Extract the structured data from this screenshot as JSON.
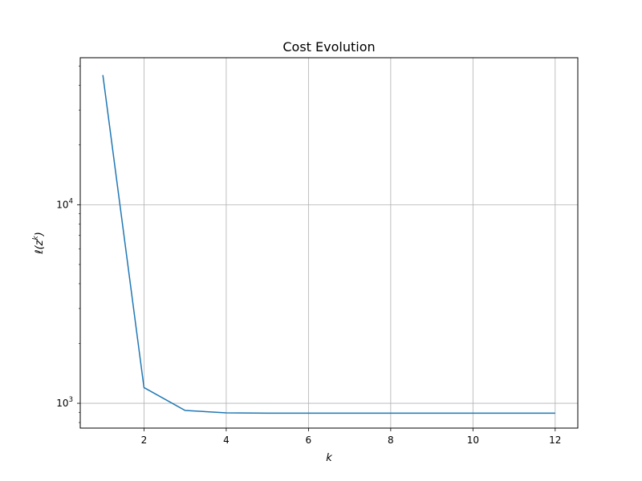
{
  "chart_data": {
    "type": "line",
    "title": "Cost Evolution",
    "xlabel": "k",
    "ylabel": "ℓ(z^k)",
    "yscale": "log",
    "xlim": [
      0.45,
      12.55
    ],
    "ylim": [
      750,
      55000
    ],
    "grid": true,
    "x_ticks": [
      {
        "value": 2,
        "label": "2"
      },
      {
        "value": 4,
        "label": "4"
      },
      {
        "value": 6,
        "label": "6"
      },
      {
        "value": 8,
        "label": "8"
      },
      {
        "value": 10,
        "label": "10"
      },
      {
        "value": 12,
        "label": "12"
      }
    ],
    "y_ticks": [
      {
        "value": 1000,
        "base": "10",
        "exp": "3"
      },
      {
        "value": 10000,
        "base": "10",
        "exp": "4"
      }
    ],
    "line_color": "#1f77b4",
    "series": [
      {
        "x": [
          1,
          2,
          3,
          4,
          5,
          6,
          7,
          8,
          9,
          10,
          11,
          12
        ],
        "values": [
          45000,
          1200,
          920,
          895,
          892,
          892,
          892,
          892,
          892,
          892,
          892,
          892
        ]
      }
    ]
  }
}
